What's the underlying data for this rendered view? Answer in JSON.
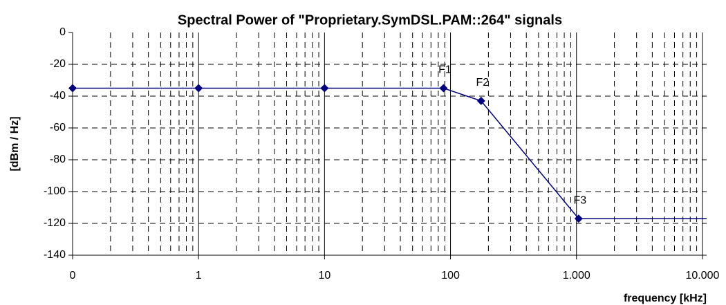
{
  "chart_data": {
    "type": "line",
    "title": "Spectral Power of \"Proprietary.SymDSL.PAM::264\" signals",
    "x_label": "frequency [kHz]",
    "y_label": "[dBm / Hz]",
    "x_scale": "log",
    "xlim": [
      0.1,
      10800
    ],
    "ylim": [
      -140,
      0
    ],
    "xticks": [
      {
        "value": 0.1,
        "label": "0"
      },
      1,
      10,
      100,
      {
        "value": 1000,
        "label": "1.000"
      },
      {
        "value": 10000,
        "label": "10.000"
      }
    ],
    "xminor_ticks": [
      0.2,
      0.3,
      0.4,
      0.5,
      0.6,
      0.7,
      0.8,
      0.9,
      2,
      3,
      4,
      5,
      6,
      7,
      8,
      9,
      20,
      30,
      40,
      50,
      60,
      70,
      80,
      90,
      200,
      300,
      400,
      500,
      600,
      700,
      800,
      900,
      2000,
      3000,
      4000,
      5000,
      6000,
      7000,
      8000,
      9000
    ],
    "yticks": [
      0,
      -20,
      -40,
      -60,
      -80,
      -100,
      -120,
      -140
    ],
    "grid": true,
    "series": [
      {
        "color": "#000080",
        "x": [
          0.1,
          1,
          10,
          88,
          175,
          1040,
          10800
        ],
        "values": [
          -35,
          -35,
          -35,
          -35,
          -43,
          -117,
          -117
        ],
        "markers": [
          true,
          true,
          true,
          true,
          true,
          true,
          false
        ],
        "point_labels": [
          null,
          null,
          null,
          "F1",
          "F2",
          "F3",
          null
        ]
      }
    ]
  }
}
